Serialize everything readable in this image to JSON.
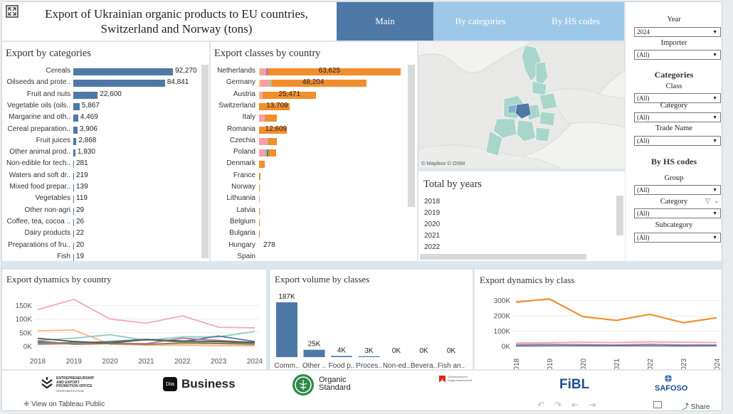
{
  "header": {
    "title_line1": "Export of Ukrainian organic products to EU countries,",
    "title_line2": "Switzerland and Norway (tons)",
    "tabs": [
      {
        "label": "Main"
      },
      {
        "label": "By categories"
      },
      {
        "label": "By HS codes"
      }
    ],
    "colors": {
      "active_tab": "#4e79a7",
      "inactive_tab": "#9ec8e8"
    }
  },
  "right_panel": {
    "year_label": "Year",
    "year_value": "2024",
    "importer_label": "Importer",
    "importer_value": "(All)",
    "categories_heading": "Categories",
    "class_label": "Class",
    "class_value": "(All)",
    "category_label": "Category",
    "category_value": "(All)",
    "trade_name_label": "Trade Name",
    "trade_name_value": "(All)",
    "hs_heading": "By HS codes",
    "group_label": "Group",
    "group_value": "(All)",
    "hs_category_label": "Category",
    "hs_category_value": "(All)",
    "subcategory_label": "Subcategory",
    "subcategory_value": "(All)"
  },
  "map": {
    "attribution": "© Mapbox © OSM"
  },
  "total_by_years": {
    "title": "Total by years",
    "years": [
      "2018",
      "2019",
      "2020",
      "2021",
      "2022"
    ]
  },
  "footer": {
    "logo1_line1": "ENTREPRENEURSHIP",
    "logo1_line2": "AND EXPORT",
    "logo1_line3": "PROMOTION OFFICE",
    "logo1_line4": "STATE INSTITUTION",
    "diia": "Diia",
    "business": "Business",
    "organic_line1": "Organic",
    "organic_line2": "Standard",
    "swiss_line1": "Schweizerische Eidgenossenschaft",
    "fibl": "FiBL",
    "safoso": "SAFOSO",
    "tableau_link": "View on Tableau Public",
    "share": "Share"
  },
  "chart_data": [
    {
      "type": "bar",
      "title": "Export by categories",
      "categories": [
        "Cereals",
        "Oilseeds and prote..",
        "Fruit and nuts",
        "Vegetable oils (oils..",
        "Margarine and oth..",
        "Cereal preparation..",
        "Fruit juices",
        "Other animal prod..",
        "Non-edible for tech..",
        "Waters and soft dr..",
        "Mixed food prepar..",
        "Vegetables",
        "Other non-agri",
        "Coffee, tea, cocoa ..",
        "Dairy products",
        "Preparations of fru..",
        "Fish"
      ],
      "values": [
        92270,
        84841,
        22600,
        5867,
        4469,
        3906,
        2868,
        1930,
        281,
        219,
        139,
        119,
        29,
        26,
        22,
        20,
        19
      ],
      "labels": [
        "92,270",
        "84,841",
        "22,600",
        "5,867",
        "4,469",
        "3,906",
        "2,868",
        "1,930",
        "281",
        "219",
        "139",
        "119",
        "29",
        "26",
        "22",
        "20",
        "19"
      ],
      "color": "#4e79a7"
    },
    {
      "type": "bar",
      "title": "Export classes by country",
      "categories": [
        "Netherlands",
        "Germany",
        "Austria",
        "Switzerland",
        "Italy",
        "Romania",
        "Czechia",
        "Poland",
        "Denmark",
        "France",
        "Norway",
        "Lithuania",
        "Latvia",
        "Belgium",
        "Bulgaria",
        "Hungary",
        "Spain"
      ],
      "values": [
        63625,
        48204,
        25471,
        13709,
        null,
        12609,
        null,
        null,
        null,
        null,
        null,
        null,
        null,
        null,
        null,
        278,
        null
      ],
      "labels": [
        "63,625",
        "48,204",
        "25,471",
        "13,709",
        "",
        "12,609",
        "",
        "",
        "",
        "",
        "",
        "",
        "",
        "",
        "",
        "278",
        ""
      ],
      "series": [
        {
          "color": "#f1ce63",
          "values": [
            600,
            500,
            300,
            0,
            0,
            0,
            0,
            0,
            0,
            0,
            0,
            0,
            0,
            0,
            0,
            0,
            0
          ]
        },
        {
          "color": "#ff9da7",
          "values": [
            2500,
            4500,
            1200,
            0,
            2500,
            0,
            3800,
            3000,
            0,
            0,
            0,
            350,
            0,
            0,
            0,
            0,
            0
          ]
        },
        {
          "color": "#b07aa1",
          "values": [
            1000,
            0,
            0,
            0,
            0,
            0,
            0,
            0,
            0,
            0,
            0,
            0,
            0,
            0,
            0,
            0,
            0
          ]
        },
        {
          "color": "#8cd17d",
          "values": [
            0,
            800,
            0,
            0,
            0,
            0,
            500,
            500,
            0,
            0,
            0,
            0,
            0,
            0,
            0,
            0,
            0
          ]
        },
        {
          "color": "#4e79a7",
          "values": [
            0,
            0,
            0,
            0,
            0,
            0,
            0,
            800,
            0,
            0,
            0,
            0,
            0,
            0,
            0,
            0,
            0
          ]
        },
        {
          "color": "#f28e2b",
          "values": [
            59525,
            42404,
            23971,
            13709,
            5500,
            12609,
            3800,
            3500,
            2500,
            500,
            400,
            0,
            200,
            150,
            100,
            0,
            0
          ]
        }
      ]
    },
    {
      "type": "line",
      "title": "Export dynamics by country",
      "x": [
        "2018",
        "2019",
        "2020",
        "2021",
        "2022",
        "2023",
        "2024"
      ],
      "yticks": [
        "0K",
        "50K",
        "100K",
        "150K"
      ],
      "ylim": [
        0,
        190000
      ],
      "series": [
        {
          "color": "#f4a6b6",
          "values": [
            135000,
            172000,
            100000,
            85000,
            112000,
            70000,
            68000
          ]
        },
        {
          "color": "#f5b67a",
          "values": [
            57000,
            60000,
            8000,
            5000,
            5000,
            3000,
            3000
          ]
        },
        {
          "color": "#8ec9c3",
          "values": [
            22000,
            30000,
            43000,
            22000,
            35000,
            35000,
            55000
          ]
        },
        {
          "color": "#4e79a7",
          "values": [
            15000,
            12000,
            18000,
            26000,
            18000,
            38000,
            18000
          ]
        },
        {
          "color": "#59a14f",
          "values": [
            10000,
            15000,
            15000,
            25000,
            15000,
            12000,
            12000
          ]
        },
        {
          "color": "#b07aa1",
          "values": [
            8000,
            10000,
            12000,
            10000,
            30000,
            22000,
            14000
          ]
        },
        {
          "color": "#555555",
          "values": [
            30000,
            18000,
            12000,
            25000,
            20000,
            18000,
            15000
          ]
        },
        {
          "color": "#9c755f",
          "values": [
            20000,
            8000,
            10000,
            8000,
            12000,
            10000,
            8000
          ]
        }
      ]
    },
    {
      "type": "bar",
      "title": "Export volume by classes",
      "categories": [
        "Comm..",
        "Other ..",
        "Food p..",
        "Proces..",
        "Non-ed..",
        "Bevera..",
        "Fish an.."
      ],
      "values": [
        187000,
        25000,
        4000,
        3000,
        0,
        0,
        0
      ],
      "labels": [
        "187K",
        "25K",
        "4K",
        "3K",
        "0K",
        "0K",
        "0K"
      ],
      "color": "#4e79a7"
    },
    {
      "type": "line",
      "title": "Export dynamics by class",
      "x": [
        "2018",
        "2019",
        "2020",
        "2021",
        "2022",
        "2023",
        "2024"
      ],
      "yticks": [
        "0K",
        "100K",
        "200K",
        "300K"
      ],
      "ylim": [
        0,
        330000
      ],
      "series": [
        {
          "color": "#f28e2b",
          "values": [
            290000,
            310000,
            195000,
            170000,
            210000,
            155000,
            187000
          ]
        },
        {
          "color": "#ff9da7",
          "values": [
            22000,
            25000,
            28000,
            25000,
            30000,
            27000,
            25000
          ]
        },
        {
          "color": "#b07aa1",
          "values": [
            12000,
            14000,
            12000,
            10000,
            14000,
            10000,
            10000
          ]
        },
        {
          "color": "#4e79a7",
          "values": [
            3000,
            4000,
            4000,
            4000,
            4000,
            3000,
            4000
          ]
        }
      ]
    }
  ]
}
